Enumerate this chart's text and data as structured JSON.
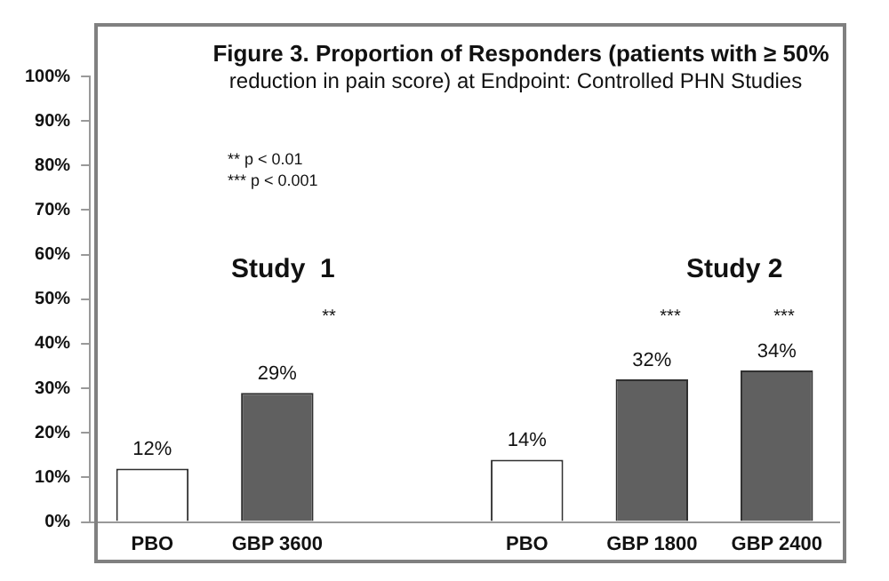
{
  "chart_data": {
    "type": "bar",
    "title": "Figure 3. Proportion of Responders (patients with ≥ 50%",
    "subtitle": "reduction in pain score) at Endpoint: Controlled PHN Studies",
    "categories": [
      "PBO",
      "GBP 3600",
      null,
      "PBO",
      "GBP 1800",
      "GBP 2400"
    ],
    "values": [
      12,
      29,
      null,
      14,
      32,
      34
    ],
    "colors": [
      "#ffffff",
      "#606060",
      "#606060",
      "#ffffff",
      "#606060",
      "#606060"
    ],
    "value_labels": [
      "12%",
      "29%",
      null,
      "14%",
      "32%",
      "34%"
    ],
    "ylim": [
      0,
      100
    ],
    "yticks": [
      {
        "value": 0,
        "label": "0%"
      },
      {
        "value": 10,
        "label": "10%"
      },
      {
        "value": 20,
        "label": "20%"
      },
      {
        "value": 30,
        "label": "30%"
      },
      {
        "value": 40,
        "label": "40%"
      },
      {
        "value": 50,
        "label": "50%"
      },
      {
        "value": 60,
        "label": "60%"
      },
      {
        "value": 70,
        "label": "70%"
      },
      {
        "value": 80,
        "label": "80%"
      },
      {
        "value": 90,
        "label": "90%"
      },
      {
        "value": 100,
        "label": "100%"
      }
    ],
    "grid": false,
    "legend": false,
    "annotations": [
      "** p < 0.01",
      "*** p < 0.001",
      "Study  1",
      "Study 2",
      "**",
      "***",
      "***"
    ]
  }
}
